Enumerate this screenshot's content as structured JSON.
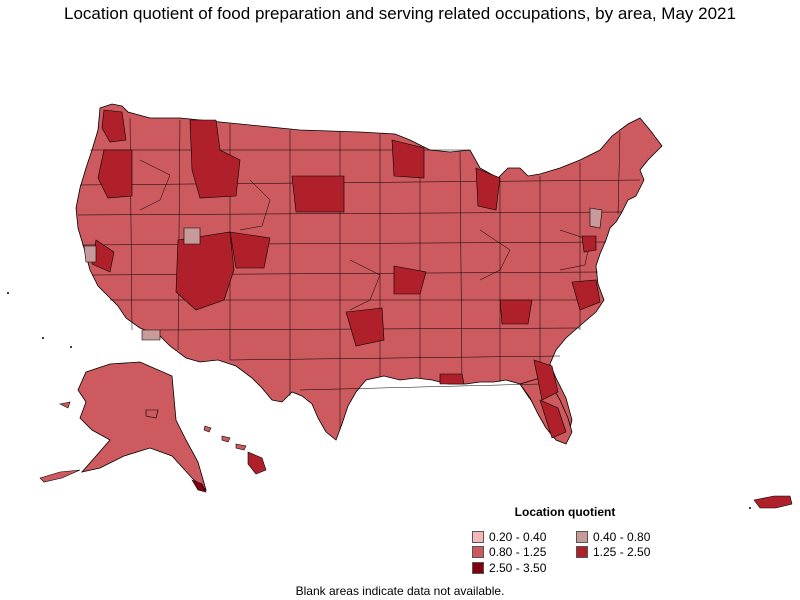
{
  "title": "Location quotient of food preparation and serving related occupations, by area, May 2021",
  "legend": {
    "title": "Location quotient",
    "items": [
      {
        "label": "0.20 - 0.40",
        "color": "#f4b8b8"
      },
      {
        "label": "0.40 - 0.80",
        "color": "#c99a9a"
      },
      {
        "label": "0.80 - 1.25",
        "color": "#cc5a5e"
      },
      {
        "label": "1.25 - 2.50",
        "color": "#b0202a"
      },
      {
        "label": "2.50 - 3.50",
        "color": "#800010"
      }
    ]
  },
  "footnote": "Blank areas indicate data not available.",
  "colors": {
    "base": "#cc5a5e",
    "high": "#b0202a",
    "low": "#c99a9a",
    "border": "#000000"
  }
}
